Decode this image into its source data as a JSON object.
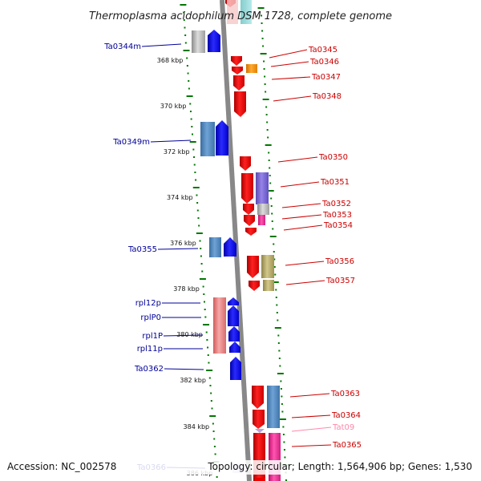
{
  "title": "Thermoplasma acidophilum DSM 1728, complete genome",
  "footer": {
    "accession": "Accession: NC_002578",
    "summary": "Topology: circular; Length: 1,564,906 bp; Genes: 1,530"
  },
  "scale": {
    "ticks": [
      {
        "label": "368 kbp"
      },
      {
        "label": "370 kbp"
      },
      {
        "label": "372 kbp"
      },
      {
        "label": "374 kbp"
      },
      {
        "label": "376 kbp"
      },
      {
        "label": "378 kbp"
      },
      {
        "label": "380 kbp"
      },
      {
        "label": "382 kbp"
      },
      {
        "label": "384 kbp"
      },
      {
        "label": "386 kbp"
      }
    ]
  },
  "left_labels": [
    {
      "text": "Ta0344m"
    },
    {
      "text": "Ta0349m"
    },
    {
      "text": "Ta0355"
    },
    {
      "text": "rpl12p"
    },
    {
      "text": "rplP0"
    },
    {
      "text": "rpl1P"
    },
    {
      "text": "rpl11p"
    },
    {
      "text": "Ta0362"
    },
    {
      "text": "Ta0366"
    }
  ],
  "right_labels": [
    {
      "text": "Ta0345"
    },
    {
      "text": "Ta0346"
    },
    {
      "text": "Ta0347"
    },
    {
      "text": "Ta0348"
    },
    {
      "text": "Ta0350"
    },
    {
      "text": "Ta0351"
    },
    {
      "text": "Ta0352"
    },
    {
      "text": "Ta0353"
    },
    {
      "text": "Ta0354"
    },
    {
      "text": "Ta0356"
    },
    {
      "text": "Ta0357"
    },
    {
      "text": "Ta0363"
    },
    {
      "text": "Ta0364"
    },
    {
      "text": "Tat09"
    },
    {
      "text": "Ta0365"
    }
  ],
  "colors": {
    "forward": "#ee0000",
    "reverse": "#0000ee",
    "label_forward": "#cc0000",
    "label_reverse": "#000099",
    "trna": "#ff88aa",
    "backbone": "#888888",
    "ticks": "#007700"
  }
}
